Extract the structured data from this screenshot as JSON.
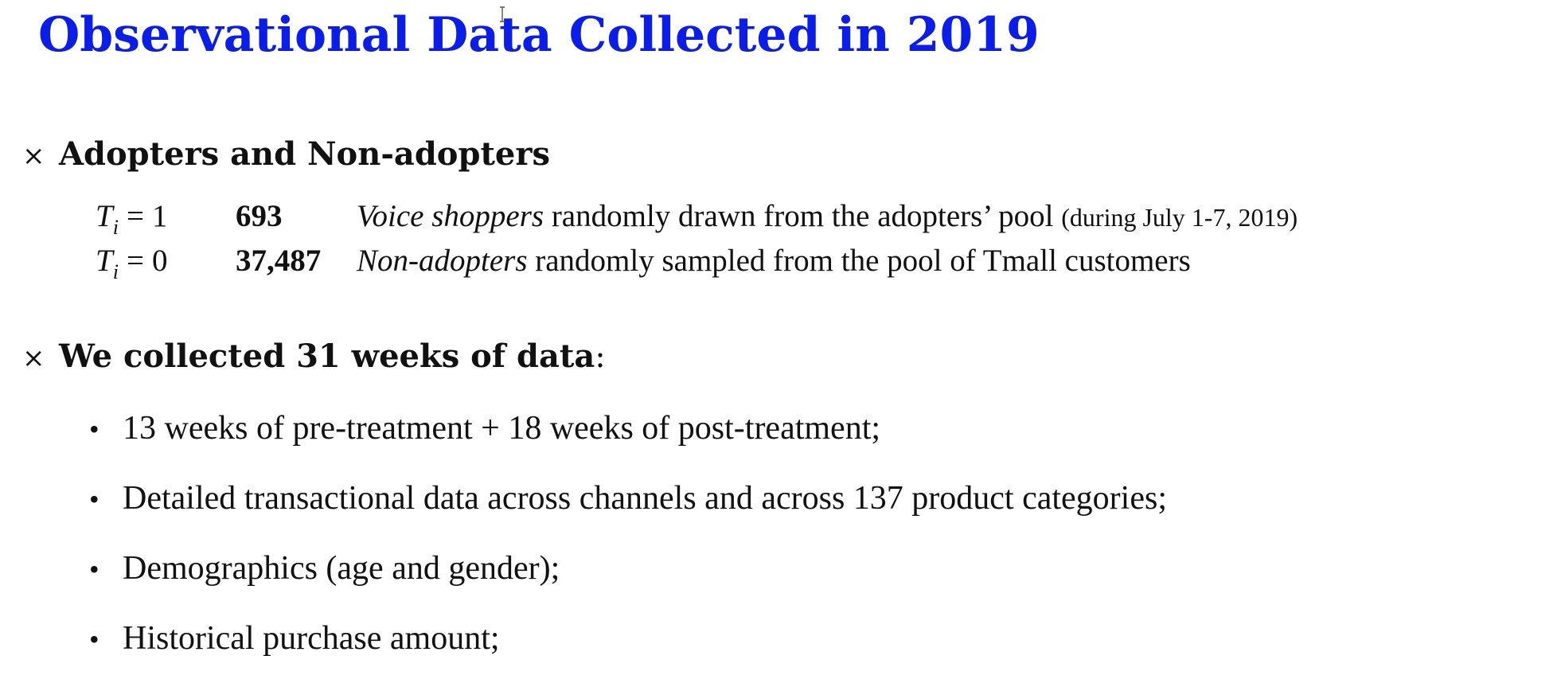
{
  "title": "Observational Data Collected in 2019",
  "section_marker": "×",
  "bullet_marker": "•",
  "section1": {
    "heading": "Adopters and Non-adopters",
    "rows": [
      {
        "variable": "T",
        "subscript": "i",
        "operator": "=",
        "value": "1",
        "count": "693",
        "group": "Voice shoppers",
        "text": "randomly drawn from the adopters’ pool",
        "note": "(during July 1-7, 2019)"
      },
      {
        "variable": "T",
        "subscript": "i",
        "operator": "=",
        "value": "0",
        "count": "37,487",
        "group": "Non-adopters",
        "text": "randomly sampled from the pool of Tmall customers",
        "note": ""
      }
    ]
  },
  "section2": {
    "heading": "We collected 31 weeks of data",
    "suffix": ":",
    "bullets": [
      "13 weeks of pre-treatment + 18 weeks of post-treatment;",
      "Detailed transactional data across channels and across 137 product categories;",
      "Demographics (age and gender);",
      "Historical purchase amount;"
    ]
  },
  "colors": {
    "title": "#0b1de8",
    "text": "#111111",
    "background": "#ffffff"
  },
  "icons": {
    "cursor": "text-cursor-icon"
  }
}
